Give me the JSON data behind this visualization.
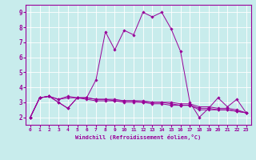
{
  "title": "",
  "xlabel": "Windchill (Refroidissement éolien,°C)",
  "background_color": "#c8ecec",
  "line_color": "#990099",
  "grid_color": "#ffffff",
  "x_hours": [
    0,
    1,
    2,
    3,
    4,
    5,
    6,
    7,
    8,
    9,
    10,
    11,
    12,
    13,
    14,
    15,
    16,
    17,
    18,
    19,
    20,
    21,
    22,
    23
  ],
  "series": [
    [
      2.0,
      3.3,
      3.4,
      3.0,
      2.6,
      3.3,
      3.3,
      4.5,
      7.7,
      6.5,
      7.8,
      7.5,
      9.0,
      8.7,
      9.0,
      7.9,
      6.4,
      3.0,
      2.0,
      2.6,
      3.3,
      2.7,
      3.2,
      2.3
    ],
    [
      2.0,
      3.3,
      3.4,
      3.0,
      2.6,
      3.3,
      3.2,
      3.1,
      3.1,
      3.1,
      3.0,
      3.0,
      3.0,
      2.9,
      2.9,
      2.8,
      2.8,
      2.8,
      2.5,
      2.5,
      2.5,
      2.5,
      2.4,
      2.3
    ],
    [
      2.0,
      3.3,
      3.4,
      3.2,
      3.4,
      3.3,
      3.3,
      3.2,
      3.2,
      3.2,
      3.1,
      3.1,
      3.1,
      3.0,
      3.0,
      3.0,
      2.9,
      2.9,
      2.7,
      2.7,
      2.6,
      2.6,
      2.5,
      2.3
    ],
    [
      2.0,
      3.3,
      3.4,
      3.2,
      3.3,
      3.3,
      3.3,
      3.2,
      3.2,
      3.1,
      3.1,
      3.1,
      3.0,
      3.0,
      3.0,
      2.9,
      2.8,
      2.8,
      2.6,
      2.6,
      2.5,
      2.5,
      2.4,
      2.3
    ]
  ],
  "xlim": [
    -0.5,
    23.5
  ],
  "ylim": [
    1.5,
    9.5
  ],
  "yticks": [
    2,
    3,
    4,
    5,
    6,
    7,
    8,
    9
  ],
  "xticks": [
    0,
    1,
    2,
    3,
    4,
    5,
    6,
    7,
    8,
    9,
    10,
    11,
    12,
    13,
    14,
    15,
    16,
    17,
    18,
    19,
    20,
    21,
    22,
    23
  ]
}
